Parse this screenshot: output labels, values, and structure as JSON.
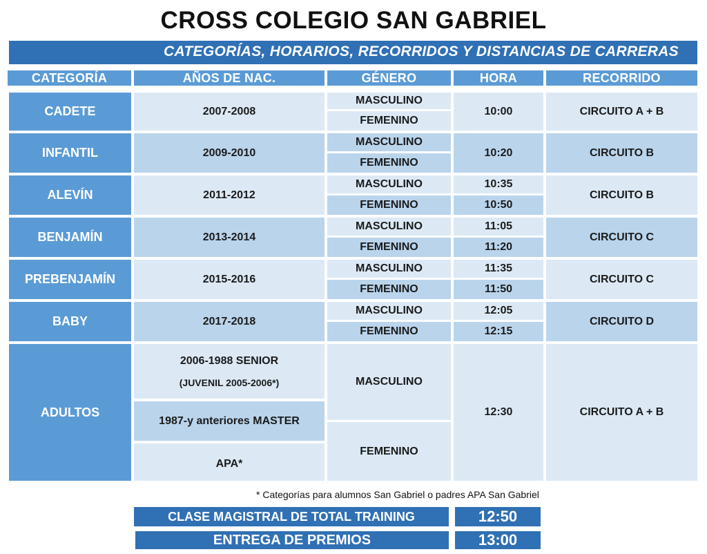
{
  "title": "CROSS COLEGIO SAN GABRIEL",
  "subtitle": "CATEGORÍAS, HORARIOS, RECORRIDOS Y DISTANCIAS DE CARRERAS",
  "headers": {
    "categoria": "CATEGORÍA",
    "anios": "AÑOS DE NAC.",
    "genero": "GÉNERO",
    "hora": "HORA",
    "recorrido": "RECORRIDO"
  },
  "rows": [
    {
      "categoria": "CADETE",
      "anios": "2007-2008",
      "genero_m": "MASCULINO",
      "genero_f": "FEMENINO",
      "hora": "10:00",
      "recorrido": "CIRCUITO A + B"
    },
    {
      "categoria": "INFANTIL",
      "anios": "2009-2010",
      "genero_m": "MASCULINO",
      "genero_f": "FEMENINO",
      "hora": "10:20",
      "recorrido": "CIRCUITO B"
    },
    {
      "categoria": "ALEVÍN",
      "anios": "2011-2012",
      "genero_m": "MASCULINO",
      "genero_f": "FEMENINO",
      "hora_m": "10:35",
      "hora_f": "10:50",
      "recorrido": "CIRCUITO B"
    },
    {
      "categoria": "BENJAMÍN",
      "anios": "2013-2014",
      "genero_m": "MASCULINO",
      "genero_f": "FEMENINO",
      "hora_m": "11:05",
      "hora_f": "11:20",
      "recorrido": "CIRCUITO C"
    },
    {
      "categoria": "PREBENJAMÍN",
      "anios": "2015-2016",
      "genero_m": "MASCULINO",
      "genero_f": "FEMENINO",
      "hora_m": "11:35",
      "hora_f": "11:50",
      "recorrido": "CIRCUITO C"
    },
    {
      "categoria": "BABY",
      "anios": "2017-2018",
      "genero_m": "MASCULINO",
      "genero_f": "FEMENINO",
      "hora_m": "12:05",
      "hora_f": "12:15",
      "recorrido": "CIRCUITO D"
    }
  ],
  "adultos": {
    "categoria": "ADULTOS",
    "anios_senior_1": "2006-1988 SENIOR",
    "anios_senior_2": "(JUVENIL 2005-2006*)",
    "anios_master": "1987-y anteriores MASTER",
    "anios_apa": "APA*",
    "genero_m": "MASCULINO",
    "genero_f": "FEMENINO",
    "hora": "12:30",
    "recorrido": "CIRCUITO A + B"
  },
  "footnote": "* Categorías para alumnos San Gabriel o padres APA San Gabriel",
  "events": [
    {
      "label": "CLASE MAGISTRAL DE TOTAL TRAINING",
      "time": "12:50"
    },
    {
      "label": "ENTREGA DE PREMIOS",
      "time": "13:00"
    }
  ],
  "colors": {
    "dark_blue": "#3070b4",
    "mid_blue": "#5b9bd5",
    "light_cell": "#dce9f5",
    "mid_cell": "#bad4ec"
  }
}
